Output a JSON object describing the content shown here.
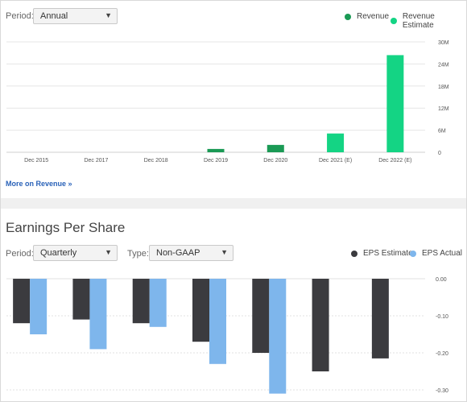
{
  "revenue": {
    "period_label": "Period:",
    "period_value": "Annual",
    "legend": [
      {
        "label": "Revenue",
        "color": "#1a9a55"
      },
      {
        "label": "Revenue Estimate",
        "color": "#14d484"
      }
    ],
    "more_link": "More on Revenue »"
  },
  "eps": {
    "title": "Earnings Per Share",
    "period_label": "Period:",
    "period_value": "Quarterly",
    "type_label": "Type:",
    "type_value": "Non-GAAP",
    "legend": [
      {
        "label": "EPS Estimate",
        "color": "#3b3b3f"
      },
      {
        "label": "EPS Actual",
        "color": "#7eb6ec"
      }
    ]
  },
  "chart_data": [
    {
      "type": "bar",
      "categories": [
        "Dec 2015",
        "Dec 2017",
        "Dec 2018",
        "Dec 2019",
        "Dec 2020",
        "Dec 2021 (E)",
        "Dec 2022 (E)"
      ],
      "series": [
        {
          "name": "Revenue",
          "values": [
            0,
            0,
            0,
            0.9,
            2.0,
            null,
            null
          ],
          "color": "#1a9a55"
        },
        {
          "name": "Revenue Estimate",
          "values": [
            null,
            null,
            null,
            null,
            null,
            5.1,
            26.4
          ],
          "color": "#14d484"
        }
      ],
      "ylim": [
        0,
        30
      ],
      "yticks": [
        "0",
        "6M",
        "12M",
        "18M",
        "24M",
        "30M"
      ],
      "ytick_values": [
        0,
        6,
        12,
        18,
        24,
        30
      ],
      "grid": true
    },
    {
      "type": "bar",
      "categories": [
        "",
        "",
        "",
        "",
        "",
        "",
        ""
      ],
      "series": [
        {
          "name": "EPS Estimate",
          "values": [
            -0.12,
            -0.11,
            -0.12,
            -0.17,
            -0.2,
            -0.25,
            -0.215
          ],
          "color": "#3b3b3f"
        },
        {
          "name": "EPS Actual",
          "values": [
            -0.15,
            -0.19,
            -0.13,
            -0.23,
            -0.31,
            null,
            null
          ],
          "color": "#7eb6ec"
        }
      ],
      "ylim": [
        -0.3,
        0
      ],
      "yticks": [
        "0.00",
        "-0.10",
        "-0.20",
        "-0.30"
      ],
      "ytick_values": [
        0,
        -0.1,
        -0.2,
        -0.3
      ],
      "grid": true
    }
  ]
}
